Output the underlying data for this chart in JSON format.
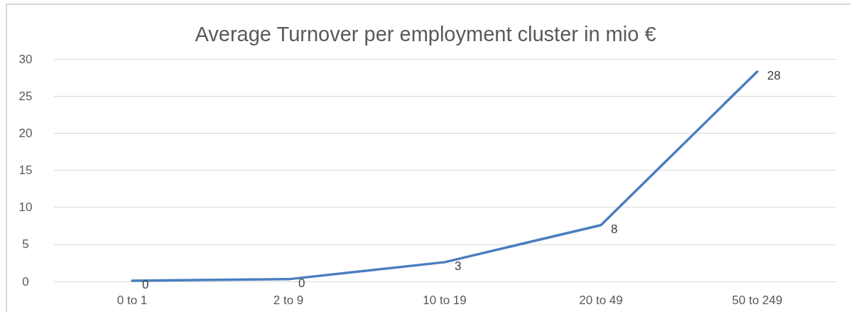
{
  "chart_data": {
    "type": "line",
    "title": "Average Turnover per employment cluster in mio €",
    "categories": [
      "0 to 1",
      "2 to 9",
      "10 to 19",
      "20 to 49",
      "50 to 249"
    ],
    "series": [
      {
        "color": "#4a7ebf",
        "values": [
          0.1,
          0.3,
          2.6,
          7.6,
          28.3
        ],
        "value_labels": [
          "0",
          "0",
          "3",
          "8",
          "28"
        ]
      }
    ],
    "ylim": [
      0,
      30
    ],
    "yticks": [
      0,
      5,
      10,
      15,
      20,
      25,
      30
    ],
    "grid": "y",
    "marker": "none",
    "line_style": "solid"
  }
}
